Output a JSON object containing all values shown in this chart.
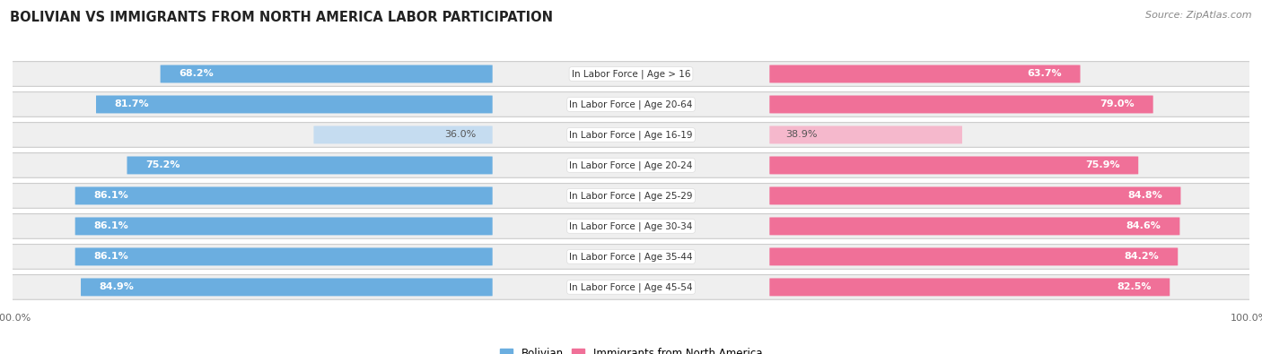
{
  "title": "BOLIVIAN VS IMMIGRANTS FROM NORTH AMERICA LABOR PARTICIPATION",
  "source": "Source: ZipAtlas.com",
  "categories": [
    "In Labor Force | Age > 16",
    "In Labor Force | Age 20-64",
    "In Labor Force | Age 16-19",
    "In Labor Force | Age 20-24",
    "In Labor Force | Age 25-29",
    "In Labor Force | Age 30-34",
    "In Labor Force | Age 35-44",
    "In Labor Force | Age 45-54"
  ],
  "bolivian": [
    68.2,
    81.7,
    36.0,
    75.2,
    86.1,
    86.1,
    86.1,
    84.9
  ],
  "immigrants": [
    63.7,
    79.0,
    38.9,
    75.9,
    84.8,
    84.6,
    84.2,
    82.5
  ],
  "bolivian_color": "#6BAEE0",
  "bolivian_color_light": "#C5DCF0",
  "immigrants_color": "#F07098",
  "immigrants_color_light": "#F5B8CC",
  "row_bg": "#EFEFEF",
  "row_shadow": "#DCDCDC",
  "max_val": 100.0,
  "figsize": [
    14.06,
    3.95
  ],
  "dpi": 100,
  "title_fontsize": 10.5,
  "value_fontsize": 8,
  "cat_fontsize": 7.5,
  "legend_fontsize": 8.5,
  "axis_fontsize": 8
}
